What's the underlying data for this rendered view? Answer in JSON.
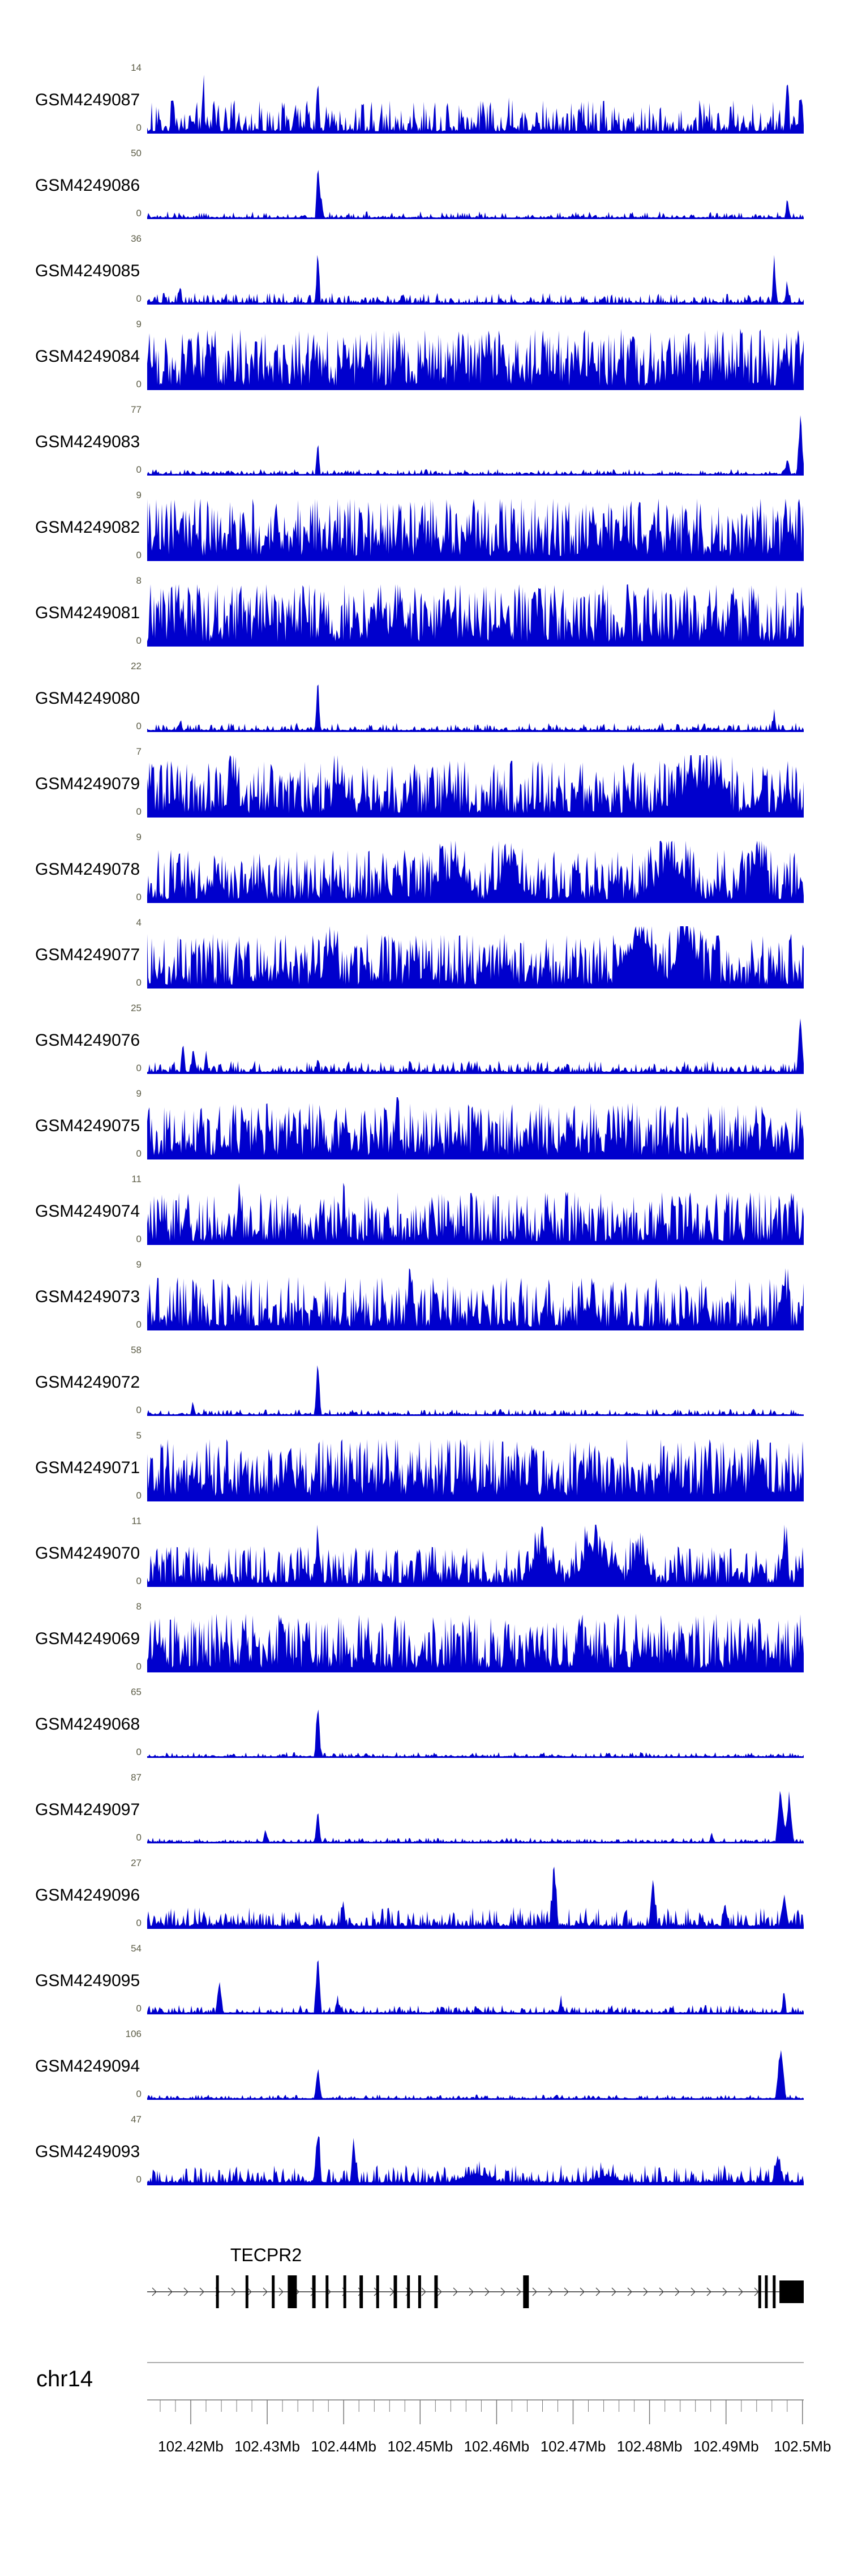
{
  "chart_data": {
    "type": "area",
    "title": "",
    "color": "#0000CD",
    "legend": "none",
    "grid": false,
    "y_axis": {
      "min_label": "0"
    },
    "x_axis": {
      "chromosome": "chr14",
      "unit": "Mb",
      "start_mb": 102.4143,
      "end_mb": 102.50016,
      "major_tick_step_mb": 0.01,
      "minor_tick_step_mb": 0.002,
      "minor_start_mb": 102.416,
      "minor_count": 43,
      "tick_labels": [
        "102.42Mb",
        "102.43Mb",
        "102.44Mb",
        "102.45Mb",
        "102.46Mb",
        "102.47Mb",
        "102.48Mb",
        "102.49Mb",
        "102.5Mb"
      ],
      "tick_values_mb": [
        102.42,
        102.43,
        102.44,
        102.45,
        102.46,
        102.47,
        102.48,
        102.49,
        102.5
      ]
    },
    "tracks": [
      {
        "label": "GSM4249087",
        "ymax": "14",
        "seed": 11,
        "base": 0.5,
        "exp": 2.4,
        "floor": 0.04,
        "peaks": [
          {
            "pos": 0.04,
            "h": 0.45
          },
          {
            "pos": 0.085,
            "h": 0.8
          },
          {
            "pos": 0.26,
            "h": 0.98
          },
          {
            "pos": 0.55,
            "h": 0.35
          },
          {
            "pos": 0.975,
            "h": 0.9
          },
          {
            "pos": 0.995,
            "h": 0.6
          }
        ]
      },
      {
        "label": "GSM4249086",
        "ymax": "50",
        "seed": 12,
        "base": 0.1,
        "exp": 4,
        "floor": 0.025,
        "peaks": [
          {
            "pos": 0.26,
            "h": 0.98
          },
          {
            "pos": 0.265,
            "h": 0.4
          },
          {
            "pos": 0.975,
            "h": 0.25
          }
        ]
      },
      {
        "label": "GSM4249085",
        "ymax": "36",
        "seed": 13,
        "base": 0.16,
        "exp": 3.2,
        "floor": 0.03,
        "peaks": [
          {
            "pos": 0.05,
            "h": 0.3
          },
          {
            "pos": 0.26,
            "h": 0.98
          },
          {
            "pos": 0.955,
            "h": 0.75
          },
          {
            "pos": 0.975,
            "h": 0.35
          }
        ]
      },
      {
        "label": "GSM4249084",
        "ymax": "9",
        "seed": 14,
        "base": 0.92,
        "exp": 1.25,
        "floor": 0.07,
        "peaks": [
          {
            "pos": 0.998,
            "h": 0.5,
            "w": 0.006
          }
        ]
      },
      {
        "label": "GSM4249083",
        "ymax": "77",
        "seed": 15,
        "base": 0.08,
        "exp": 4,
        "floor": 0.025,
        "peaks": [
          {
            "pos": 0.26,
            "h": 0.6
          },
          {
            "pos": 0.995,
            "h": 0.98,
            "w": 0.006
          },
          {
            "pos": 0.975,
            "h": 0.3
          }
        ]
      },
      {
        "label": "GSM4249082",
        "ymax": "9",
        "seed": 16,
        "base": 0.95,
        "exp": 1.2,
        "floor": 0.08,
        "peaks": []
      },
      {
        "label": "GSM4249081",
        "ymax": "8",
        "seed": 17,
        "base": 0.95,
        "exp": 1.2,
        "floor": 0.08,
        "peaks": []
      },
      {
        "label": "GSM4249080",
        "ymax": "22",
        "seed": 18,
        "base": 0.12,
        "exp": 3.6,
        "floor": 0.03,
        "peaks": [
          {
            "pos": 0.26,
            "h": 0.98
          },
          {
            "pos": 0.955,
            "h": 0.3
          },
          {
            "pos": 0.05,
            "h": 0.15
          }
        ]
      },
      {
        "label": "GSM4249079",
        "ymax": "7",
        "seed": 19,
        "base": 0.85,
        "exp": 1.4,
        "floor": 0.07,
        "peaks": [
          {
            "pos": 0.13,
            "h": 0.5,
            "w": 0.012
          },
          {
            "pos": 0.29,
            "h": 0.6,
            "w": 0.01
          },
          {
            "pos": 0.83,
            "h": 0.55,
            "w": 0.03
          },
          {
            "pos": 0.87,
            "h": 0.5,
            "w": 0.025
          }
        ]
      },
      {
        "label": "GSM4249078",
        "ymax": "9",
        "seed": 20,
        "base": 0.8,
        "exp": 1.5,
        "floor": 0.06,
        "peaks": [
          {
            "pos": 0.47,
            "h": 0.5,
            "w": 0.035
          },
          {
            "pos": 0.55,
            "h": 0.45,
            "w": 0.03
          },
          {
            "pos": 0.8,
            "h": 0.6,
            "w": 0.04
          },
          {
            "pos": 0.93,
            "h": 0.7,
            "w": 0.015
          }
        ]
      },
      {
        "label": "GSM4249077",
        "ymax": "4",
        "seed": 21,
        "base": 0.82,
        "exp": 1.4,
        "floor": 0.06,
        "peaks": [
          {
            "pos": 0.28,
            "h": 0.6,
            "w": 0.012
          },
          {
            "pos": 0.75,
            "h": 0.9,
            "w": 0.035
          },
          {
            "pos": 0.82,
            "h": 0.8,
            "w": 0.03
          }
        ]
      },
      {
        "label": "GSM4249076",
        "ymax": "25",
        "seed": 22,
        "base": 0.18,
        "exp": 3.4,
        "floor": 0.035,
        "peaks": [
          {
            "pos": 0.055,
            "h": 0.5
          },
          {
            "pos": 0.07,
            "h": 0.45
          },
          {
            "pos": 0.09,
            "h": 0.35
          },
          {
            "pos": 0.26,
            "h": 0.25
          },
          {
            "pos": 0.995,
            "h": 0.9,
            "w": 0.006
          }
        ]
      },
      {
        "label": "GSM4249075",
        "ymax": "9",
        "seed": 23,
        "base": 0.85,
        "exp": 1.4,
        "floor": 0.07,
        "peaks": [
          {
            "pos": 0.38,
            "h": 0.6,
            "w": 0.008
          }
        ]
      },
      {
        "label": "GSM4249074",
        "ymax": "11",
        "seed": 24,
        "base": 0.8,
        "exp": 1.5,
        "floor": 0.06,
        "peaks": [
          {
            "pos": 0.14,
            "h": 0.8,
            "w": 0.006
          },
          {
            "pos": 0.3,
            "h": 0.6,
            "w": 0.006
          }
        ]
      },
      {
        "label": "GSM4249073",
        "ymax": "9",
        "seed": 25,
        "base": 0.8,
        "exp": 1.5,
        "floor": 0.06,
        "peaks": [
          {
            "pos": 0.4,
            "h": 0.8,
            "w": 0.006
          },
          {
            "pos": 0.97,
            "h": 0.7,
            "w": 0.008
          }
        ]
      },
      {
        "label": "GSM4249072",
        "ymax": "58",
        "seed": 26,
        "base": 0.09,
        "exp": 4,
        "floor": 0.025,
        "peaks": [
          {
            "pos": 0.07,
            "h": 0.18
          },
          {
            "pos": 0.26,
            "h": 0.98,
            "w": 0.005
          }
        ]
      },
      {
        "label": "GSM4249071",
        "ymax": "5",
        "seed": 27,
        "base": 0.95,
        "exp": 1.15,
        "floor": 0.09,
        "peaks": []
      },
      {
        "label": "GSM4249070",
        "ymax": "11",
        "seed": 28,
        "base": 0.6,
        "exp": 1.7,
        "floor": 0.06,
        "peaks": [
          {
            "pos": 0.26,
            "h": 0.85,
            "w": 0.006
          },
          {
            "pos": 0.6,
            "h": 0.5,
            "w": 0.03
          },
          {
            "pos": 0.68,
            "h": 0.6,
            "w": 0.035
          },
          {
            "pos": 0.75,
            "h": 0.45,
            "w": 0.025
          },
          {
            "pos": 0.97,
            "h": 0.6,
            "w": 0.01
          }
        ]
      },
      {
        "label": "GSM4249069",
        "ymax": "8",
        "seed": 29,
        "base": 0.88,
        "exp": 1.35,
        "floor": 0.07,
        "peaks": []
      },
      {
        "label": "GSM4249068",
        "ymax": "65",
        "seed": 30,
        "base": 0.07,
        "exp": 4.2,
        "floor": 0.025,
        "peaks": [
          {
            "pos": 0.26,
            "h": 0.98,
            "w": 0.005
          }
        ]
      },
      {
        "label": "GSM4249097",
        "ymax": "87",
        "seed": 31,
        "base": 0.07,
        "exp": 4,
        "floor": 0.025,
        "peaks": [
          {
            "pos": 0.18,
            "h": 0.22
          },
          {
            "pos": 0.26,
            "h": 0.6,
            "w": 0.005
          },
          {
            "pos": 0.86,
            "h": 0.15
          },
          {
            "pos": 0.965,
            "h": 0.98,
            "w": 0.008
          },
          {
            "pos": 0.978,
            "h": 0.85,
            "w": 0.007
          }
        ]
      },
      {
        "label": "GSM4249096",
        "ymax": "27",
        "seed": 32,
        "base": 0.3,
        "exp": 2.8,
        "floor": 0.05,
        "peaks": [
          {
            "pos": 0.3,
            "h": 0.2
          },
          {
            "pos": 0.62,
            "h": 0.95,
            "w": 0.006
          },
          {
            "pos": 0.77,
            "h": 0.85,
            "w": 0.006
          },
          {
            "pos": 0.88,
            "h": 0.4,
            "w": 0.006
          },
          {
            "pos": 0.97,
            "h": 0.45,
            "w": 0.008
          }
        ]
      },
      {
        "label": "GSM4249095",
        "ymax": "54",
        "seed": 33,
        "base": 0.12,
        "exp": 3.6,
        "floor": 0.03,
        "peaks": [
          {
            "pos": 0.11,
            "h": 0.55,
            "w": 0.006
          },
          {
            "pos": 0.26,
            "h": 0.95,
            "w": 0.006
          },
          {
            "pos": 0.29,
            "h": 0.3
          },
          {
            "pos": 0.63,
            "h": 0.25
          },
          {
            "pos": 0.97,
            "h": 0.3
          }
        ]
      },
      {
        "label": "GSM4249094",
        "ymax": "106",
        "seed": 34,
        "base": 0.06,
        "exp": 4.5,
        "floor": 0.025,
        "peaks": [
          {
            "pos": 0.26,
            "h": 0.6,
            "w": 0.005
          },
          {
            "pos": 0.965,
            "h": 0.98,
            "w": 0.008
          }
        ]
      },
      {
        "label": "GSM4249093",
        "ymax": "47",
        "seed": 35,
        "base": 0.28,
        "exp": 3,
        "floor": 0.05,
        "peaks": [
          {
            "pos": 0.26,
            "h": 0.95,
            "w": 0.006
          },
          {
            "pos": 0.315,
            "h": 0.65,
            "w": 0.006
          },
          {
            "pos": 0.5,
            "h": 0.15,
            "w": 0.04
          },
          {
            "pos": 0.7,
            "h": 0.12,
            "w": 0.03
          },
          {
            "pos": 0.96,
            "h": 0.45,
            "w": 0.008
          }
        ]
      }
    ],
    "gene_track": {
      "gene": "TECPR2",
      "strand": "+",
      "label_pos": 0.181,
      "exon_h": 58,
      "exons": [
        {
          "pos": 0.107,
          "w": 5
        },
        {
          "pos": 0.152,
          "w": 5
        },
        {
          "pos": 0.192,
          "w": 5
        },
        {
          "pos": 0.221,
          "w": 16
        },
        {
          "pos": 0.254,
          "w": 6
        },
        {
          "pos": 0.274,
          "w": 5
        },
        {
          "pos": 0.301,
          "w": 5
        },
        {
          "pos": 0.326,
          "w": 6
        },
        {
          "pos": 0.351,
          "w": 5
        },
        {
          "pos": 0.378,
          "w": 6
        },
        {
          "pos": 0.398,
          "w": 5
        },
        {
          "pos": 0.415,
          "w": 5
        },
        {
          "pos": 0.44,
          "w": 6
        },
        {
          "pos": 0.577,
          "w": 10
        },
        {
          "pos": 0.933,
          "w": 5
        },
        {
          "pos": 0.943,
          "w": 5
        },
        {
          "pos": 0.955,
          "w": 5
        }
      ],
      "terminal_box": {
        "start": 0.963,
        "end": 1.0,
        "h": 40
      }
    }
  }
}
